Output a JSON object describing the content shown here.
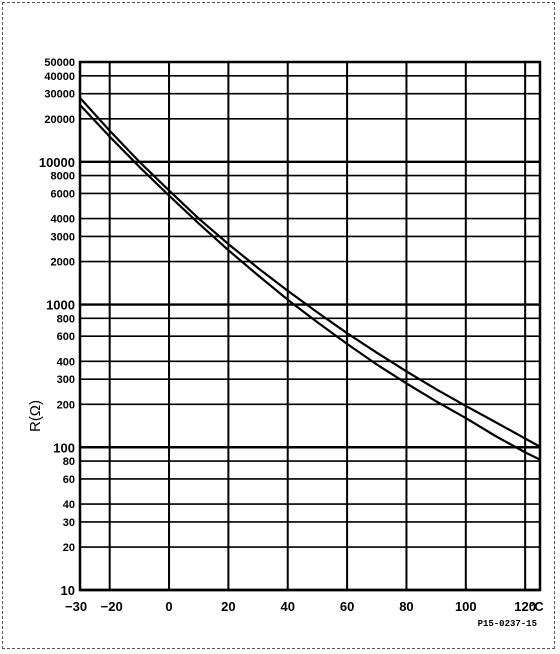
{
  "chart_data": {
    "type": "line",
    "xlabel": "°C",
    "ylabel": "R(Ω)",
    "y_scale": "log",
    "xlim": [
      -30,
      125
    ],
    "ylim": [
      10,
      50000
    ],
    "grid": true,
    "x_ticks": [
      {
        "value": -30,
        "label": "−30"
      },
      {
        "value": -20,
        "label": "−20"
      },
      {
        "value": 0,
        "label": "0"
      },
      {
        "value": 20,
        "label": "20"
      },
      {
        "value": 40,
        "label": "40"
      },
      {
        "value": 60,
        "label": "60"
      },
      {
        "value": 80,
        "label": "80"
      },
      {
        "value": 100,
        "label": "100"
      },
      {
        "value": 120,
        "label": "120"
      }
    ],
    "y_ticks": [
      {
        "value": 50000,
        "label": "50000"
      },
      {
        "value": 40000,
        "label": "40000"
      },
      {
        "value": 30000,
        "label": "30000"
      },
      {
        "value": 20000,
        "label": "20000"
      },
      {
        "value": 10000,
        "label": "10000"
      },
      {
        "value": 8000,
        "label": "8000"
      },
      {
        "value": 6000,
        "label": "6000"
      },
      {
        "value": 4000,
        "label": "4000"
      },
      {
        "value": 3000,
        "label": "3000"
      },
      {
        "value": 2000,
        "label": "2000"
      },
      {
        "value": 1000,
        "label": "1000"
      },
      {
        "value": 800,
        "label": "800"
      },
      {
        "value": 600,
        "label": "600"
      },
      {
        "value": 400,
        "label": "400"
      },
      {
        "value": 300,
        "label": "300"
      },
      {
        "value": 200,
        "label": "200"
      },
      {
        "value": 100,
        "label": "100"
      },
      {
        "value": 80,
        "label": "80"
      },
      {
        "value": 60,
        "label": "60"
      },
      {
        "value": 40,
        "label": "40"
      },
      {
        "value": 30,
        "label": "30"
      },
      {
        "value": 20,
        "label": "20"
      },
      {
        "value": 10,
        "label": "10"
      }
    ],
    "series": [
      {
        "points": [
          {
            "x": -30,
            "y": 28000
          },
          {
            "x": -20,
            "y": 16500
          },
          {
            "x": -10,
            "y": 10000
          },
          {
            "x": 0,
            "y": 6300
          },
          {
            "x": 10,
            "y": 4000
          },
          {
            "x": 20,
            "y": 2650
          },
          {
            "x": 30,
            "y": 1800
          },
          {
            "x": 40,
            "y": 1250
          },
          {
            "x": 50,
            "y": 880
          },
          {
            "x": 60,
            "y": 630
          },
          {
            "x": 70,
            "y": 460
          },
          {
            "x": 80,
            "y": 340
          },
          {
            "x": 90,
            "y": 255
          },
          {
            "x": 100,
            "y": 195
          },
          {
            "x": 110,
            "y": 150
          },
          {
            "x": 120,
            "y": 115
          },
          {
            "x": 125,
            "y": 101
          }
        ]
      },
      {
        "points": [
          {
            "x": -30,
            "y": 25000
          },
          {
            "x": -20,
            "y": 15000
          },
          {
            "x": -10,
            "y": 9200
          },
          {
            "x": 0,
            "y": 5800
          },
          {
            "x": 10,
            "y": 3700
          },
          {
            "x": 20,
            "y": 2400
          },
          {
            "x": 30,
            "y": 1600
          },
          {
            "x": 40,
            "y": 1080
          },
          {
            "x": 50,
            "y": 750
          },
          {
            "x": 60,
            "y": 530
          },
          {
            "x": 70,
            "y": 380
          },
          {
            "x": 80,
            "y": 280
          },
          {
            "x": 90,
            "y": 210
          },
          {
            "x": 100,
            "y": 160
          },
          {
            "x": 110,
            "y": 120
          },
          {
            "x": 120,
            "y": 92
          },
          {
            "x": 125,
            "y": 82
          }
        ]
      }
    ],
    "figure_code": "P15-0237-15"
  }
}
